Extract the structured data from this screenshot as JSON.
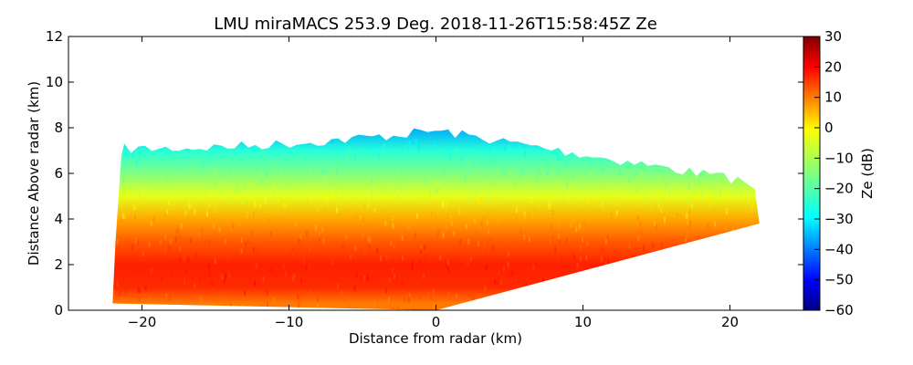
{
  "chart_data": {
    "type": "heatmap",
    "title": "LMU miraMACS 253.9 Deg. 2018-11-26T15:58:45Z  Ze",
    "xlabel": "Distance from radar (km)",
    "ylabel": "Distance Above radar  (km)",
    "xlim": [
      -25,
      25
    ],
    "ylim": [
      0,
      12
    ],
    "x_ticks": [
      -20,
      -10,
      0,
      10,
      20
    ],
    "y_ticks": [
      0,
      2,
      4,
      6,
      8,
      10,
      12
    ],
    "grid": false,
    "colorbar": {
      "label": "Ze (dB)",
      "range": [
        -60,
        30
      ],
      "ticks": [
        30,
        20,
        10,
        0,
        -10,
        -20,
        -30,
        -40,
        -50,
        -60
      ],
      "colormap": "jet",
      "colors": [
        "#00007f",
        "#0000ff",
        "#007fff",
        "#00ffff",
        "#7fff7f",
        "#ffff00",
        "#ff7f00",
        "#ff0000",
        "#7f0000"
      ]
    },
    "echo_extent": {
      "left_edge_x": -22,
      "right_edge_x": 22,
      "top_height_left": 7.3,
      "top_height_center": 8.1,
      "top_height_right": 5.8,
      "right_base_height": 3.8
    },
    "ze_profile": [
      {
        "height": 0.3,
        "ze": 8
      },
      {
        "height": 1.0,
        "ze": 15
      },
      {
        "height": 2.0,
        "ze": 16
      },
      {
        "height": 3.0,
        "ze": 11
      },
      {
        "height": 4.0,
        "ze": 4
      },
      {
        "height": 5.0,
        "ze": -6
      },
      {
        "height": 6.0,
        "ze": -15
      },
      {
        "height": 7.0,
        "ze": -23
      },
      {
        "height": 8.0,
        "ze": -34
      }
    ]
  }
}
